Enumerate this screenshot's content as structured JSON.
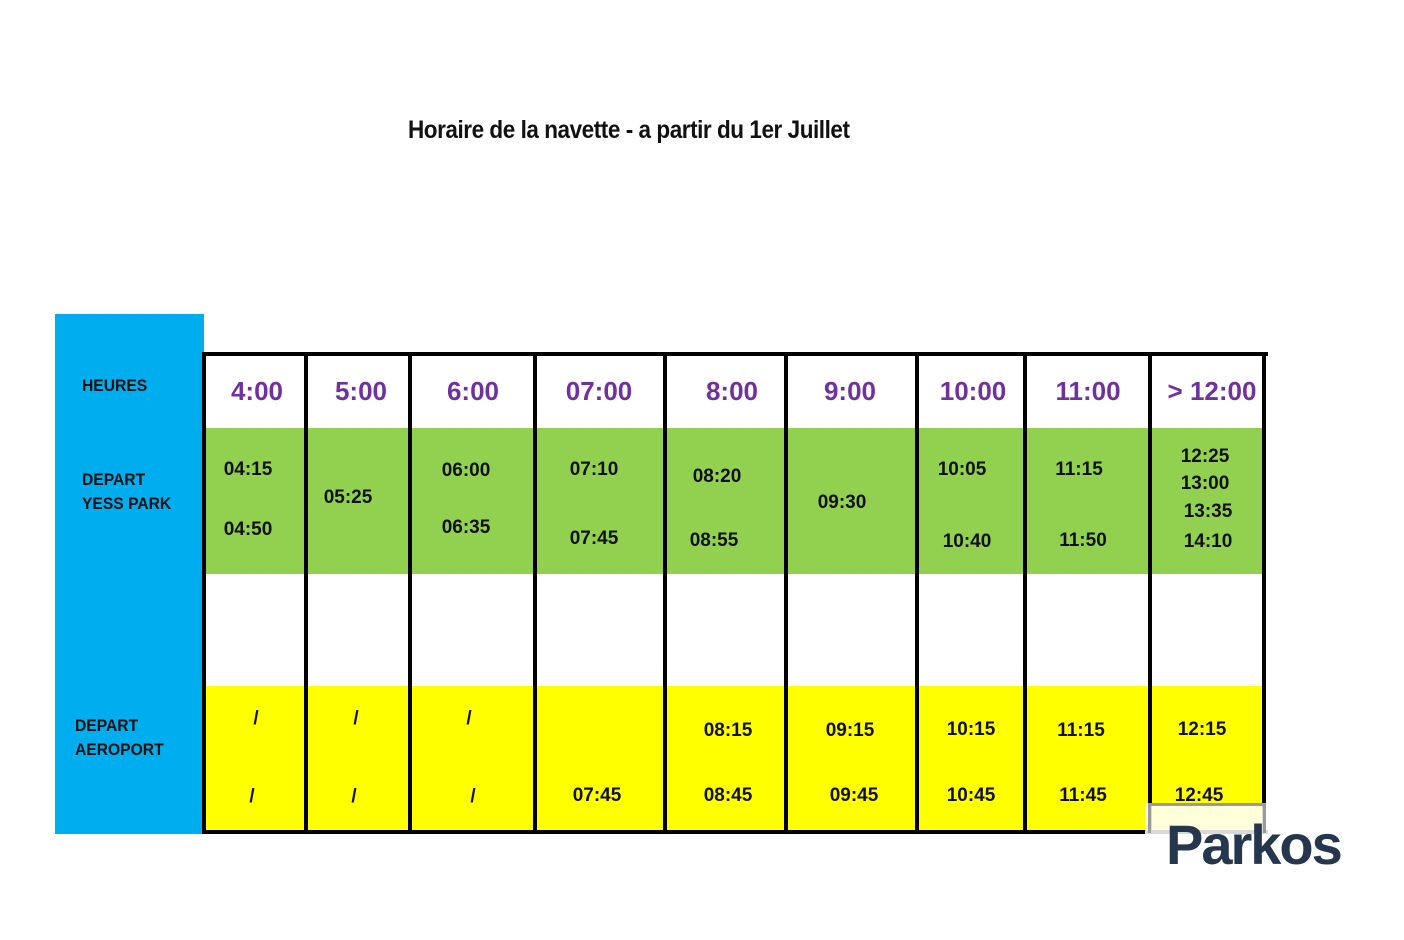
{
  "title": "Horaire de la navette - a partir du 1er Juillet",
  "row_labels": {
    "heures": "HEURES",
    "depart_yess_park": "DEPART\nYESS PARK",
    "depart_aeroport": "DEPART\nAEROPORT"
  },
  "hours": [
    "4:00",
    "5:00",
    "6:00",
    "07:00",
    "8:00",
    "9:00",
    "10:00",
    "11:00",
    "> 12:00"
  ],
  "depart_yess_park": [
    [
      "04:15",
      "04:50"
    ],
    [
      "05:25"
    ],
    [
      "06:00",
      "06:35"
    ],
    [
      "07:10",
      "07:45"
    ],
    [
      "08:20",
      "08:55"
    ],
    [
      "09:30"
    ],
    [
      "10:05",
      "10:40"
    ],
    [
      "11:15",
      "11:50"
    ],
    [
      "12:25",
      "13:00",
      "13:35",
      "14:10"
    ]
  ],
  "depart_aeroport": [
    [
      "/",
      "/"
    ],
    [
      "/",
      "/"
    ],
    [
      "/",
      "/"
    ],
    [
      "07:45"
    ],
    [
      "08:15",
      "08:45"
    ],
    [
      "09:15",
      "09:45"
    ],
    [
      "10:15",
      "10:45"
    ],
    [
      "11:15",
      "11:45"
    ],
    [
      "12:15",
      "12:45"
    ]
  ],
  "logo": "Parkos",
  "colors": {
    "sidebar": "#00adef",
    "yess_park_band": "#92d050",
    "aeroport_band": "#ffff00",
    "hour_text": "#7030a0",
    "logo_text": "#26374d"
  }
}
